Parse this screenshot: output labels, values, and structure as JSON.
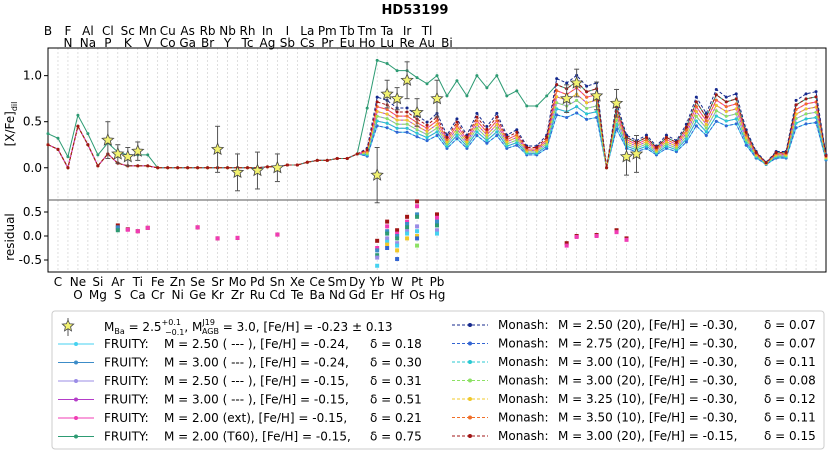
{
  "chart_data": {
    "type": "line",
    "title": "HD53199",
    "top_elements": [
      "B",
      "F",
      "Al",
      "Cl",
      "Sc",
      "Mn",
      "Cu",
      "As",
      "Rb",
      "Nb",
      "Rh",
      "In",
      "I",
      "La",
      "Pm",
      "Tb",
      "Tm",
      "Ta",
      "Ir",
      "Tl"
    ],
    "top_elements_row2": [
      "N",
      "Na",
      "P",
      "K",
      "V",
      "Co",
      "Ga",
      "Br",
      "Y",
      "Tc",
      "Ag",
      "Sb",
      "Cs",
      "Pr",
      "Eu",
      "Ho",
      "Lu",
      "Re",
      "Au",
      "Bi"
    ],
    "bottom_elements": [
      "C",
      "Ne",
      "Si",
      "Ar",
      "Ti",
      "Fe",
      "Zn",
      "Se",
      "Sr",
      "Mo",
      "Pd",
      "Sn",
      "Xe",
      "Ce",
      "Sm",
      "Dy",
      "Yb",
      "W",
      "Pt",
      "Pb"
    ],
    "bottom_elements_row2": [
      "O",
      "Mg",
      "S",
      "Ca",
      "Cr",
      "Ni",
      "Ge",
      "Kr",
      "Zr",
      "Ru",
      "Cd",
      "Te",
      "Ba",
      "Nd",
      "Gd",
      "Er",
      "Hf",
      "Os",
      "Hg"
    ],
    "upper_panel": {
      "ylabel": "[X/Fe]",
      "ylabel_sub": "dil",
      "ylim": [
        -0.35,
        1.3
      ],
      "yticks": [
        "0.0",
        "0.5",
        "1.0"
      ],
      "ytick_values": [
        0.0,
        0.5,
        1.0
      ]
    },
    "lower_panel": {
      "ylabel": "residual",
      "ylim": [
        -0.75,
        0.75
      ],
      "yticks": [
        "0.5",
        "0.0",
        "-0.5"
      ],
      "ytick_values": [
        0.5,
        0.0,
        -0.5
      ]
    },
    "observations": {
      "Z": [
        11,
        12,
        13,
        14,
        22,
        24,
        26,
        28,
        38,
        39,
        40,
        41,
        42,
        44,
        57,
        58,
        60,
        62,
        63,
        64
      ],
      "values": [
        0.3,
        0.15,
        0.12,
        0.18,
        0.2,
        -0.05,
        -0.03,
        0.0,
        -0.08,
        0.8,
        0.75,
        0.95,
        0.6,
        0.75,
        0.75,
        0.92,
        0.78,
        0.7,
        0.12,
        0.15
      ],
      "errors": [
        0.2,
        0.1,
        0.1,
        0.1,
        0.25,
        0.2,
        0.2,
        0.15,
        0.3,
        0.15,
        0.12,
        0.2,
        0.15,
        0.2,
        0.15,
        0.15,
        0.15,
        0.15,
        0.2,
        0.2
      ]
    },
    "residuals": [
      {
        "Z": 12,
        "values": [
          0.22,
          0.15,
          0.18,
          0.12
        ]
      },
      {
        "Z": 13,
        "values": [
          0.14,
          0.13
        ]
      },
      {
        "Z": 14,
        "values": [
          0.1,
          0.1
        ]
      },
      {
        "Z": 15,
        "values": [
          0.17,
          0.17
        ]
      },
      {
        "Z": 20,
        "values": [
          0.18,
          0.18
        ]
      },
      {
        "Z": 22,
        "values": [
          -0.05,
          -0.05
        ]
      },
      {
        "Z": 24,
        "values": [
          -0.04,
          -0.04
        ]
      },
      {
        "Z": 28,
        "values": [
          0.03,
          0.03
        ]
      },
      {
        "Z": 38,
        "values": [
          -0.1,
          -0.25,
          -0.3,
          -0.4,
          -0.45,
          -0.62
        ]
      },
      {
        "Z": 39,
        "values": [
          0.3,
          0.2,
          0.1,
          0.05,
          -0.05,
          -0.12,
          -0.18,
          -0.25
        ]
      },
      {
        "Z": 40,
        "values": [
          0.12,
          0.05,
          0.0,
          -0.05,
          -0.15,
          -0.2,
          -0.3,
          -0.48
        ]
      },
      {
        "Z": 41,
        "values": [
          0.4,
          0.3,
          0.25,
          0.18,
          0.1,
          0.05,
          -0.05
        ]
      },
      {
        "Z": 42,
        "values": [
          0.72,
          0.62,
          0.45,
          0.4,
          0.2,
          0.1,
          0.0,
          -0.05,
          -0.2
        ]
      },
      {
        "Z": 44,
        "values": [
          0.45,
          0.38,
          0.3,
          0.22,
          0.12,
          0.05
        ]
      },
      {
        "Z": 57,
        "values": [
          -0.15,
          -0.2
        ]
      },
      {
        "Z": 58,
        "values": [
          0.0,
          -0.02
        ]
      },
      {
        "Z": 60,
        "values": [
          0.02,
          0.0
        ]
      },
      {
        "Z": 62,
        "values": [
          0.12,
          0.08
        ]
      },
      {
        "Z": 63,
        "values": [
          -0.05,
          -0.08
        ]
      }
    ],
    "legend": {
      "obs": "M",
      "obs_ba_sub": "Ba",
      "obs_ba_val": " = 2.5",
      "obs_ba_sup": "+0.1",
      "obs_ba_sub2": "−0.1",
      "obs_agb_val": ", M",
      "obs_agb_sup": "J19",
      "obs_agb_sub": "AGB",
      "obs_tail": " = 3.0, [Fe/H] = -0.23 ± 0.13",
      "left": [
        {
          "name": "FRUITY:",
          "desc": "M = 2.50 ( --- ), [Fe/H] = -0.24,",
          "delta": "δ = 0.18",
          "color": "#46d2f0"
        },
        {
          "name": "FRUITY:",
          "desc": "M = 3.00 ( --- ), [Fe/H] = -0.24,",
          "delta": "δ = 0.30",
          "color": "#3c8cc8"
        },
        {
          "name": "FRUITY:",
          "desc": "M = 2.50 ( --- ), [Fe/H] = -0.15,",
          "delta": "δ = 0.31",
          "color": "#9b8ce6"
        },
        {
          "name": "FRUITY:",
          "desc": "M = 3.00 ( --- ), [Fe/H] = -0.15,",
          "delta": "δ = 0.51",
          "color": "#b43cc8"
        },
        {
          "name": "FRUITY:",
          "desc": "M = 2.00 (ext), [Fe/H] = -0.15,",
          "delta": "δ = 0.21",
          "color": "#f03cb4"
        },
        {
          "name": "FRUITY:",
          "desc": "M = 2.00 (T60), [Fe/H] = -0.15,",
          "delta": "δ = 0.75",
          "color": "#2d9b73"
        }
      ],
      "right": [
        {
          "name": "Monash:",
          "desc": "M = 2.50 (20), [Fe/H] = -0.30,",
          "delta": "δ = 0.07",
          "color": "#14288c"
        },
        {
          "name": "Monash:",
          "desc": "M = 2.75 (20), [Fe/H] = -0.30,",
          "delta": "δ = 0.07",
          "color": "#3264d2"
        },
        {
          "name": "Monash:",
          "desc": "M = 3.00 (10), [Fe/H] = -0.30,",
          "delta": "δ = 0.11",
          "color": "#28c8d2"
        },
        {
          "name": "Monash:",
          "desc": "M = 3.00 (20), [Fe/H] = -0.30,",
          "delta": "δ = 0.08",
          "color": "#8ce164"
        },
        {
          "name": "Monash:",
          "desc": "M = 3.25 (10), [Fe/H] = -0.30,",
          "delta": "δ = 0.12",
          "color": "#f0c828"
        },
        {
          "name": "Monash:",
          "desc": "M = 3.50 (10), [Fe/H] = -0.30,",
          "delta": "δ = 0.11",
          "color": "#f06e28"
        },
        {
          "name": "Monash:",
          "desc": "M = 3.00 (20), [Fe/H] = -0.15,",
          "delta": "δ = 0.15",
          "color": "#a01414"
        }
      ]
    }
  }
}
